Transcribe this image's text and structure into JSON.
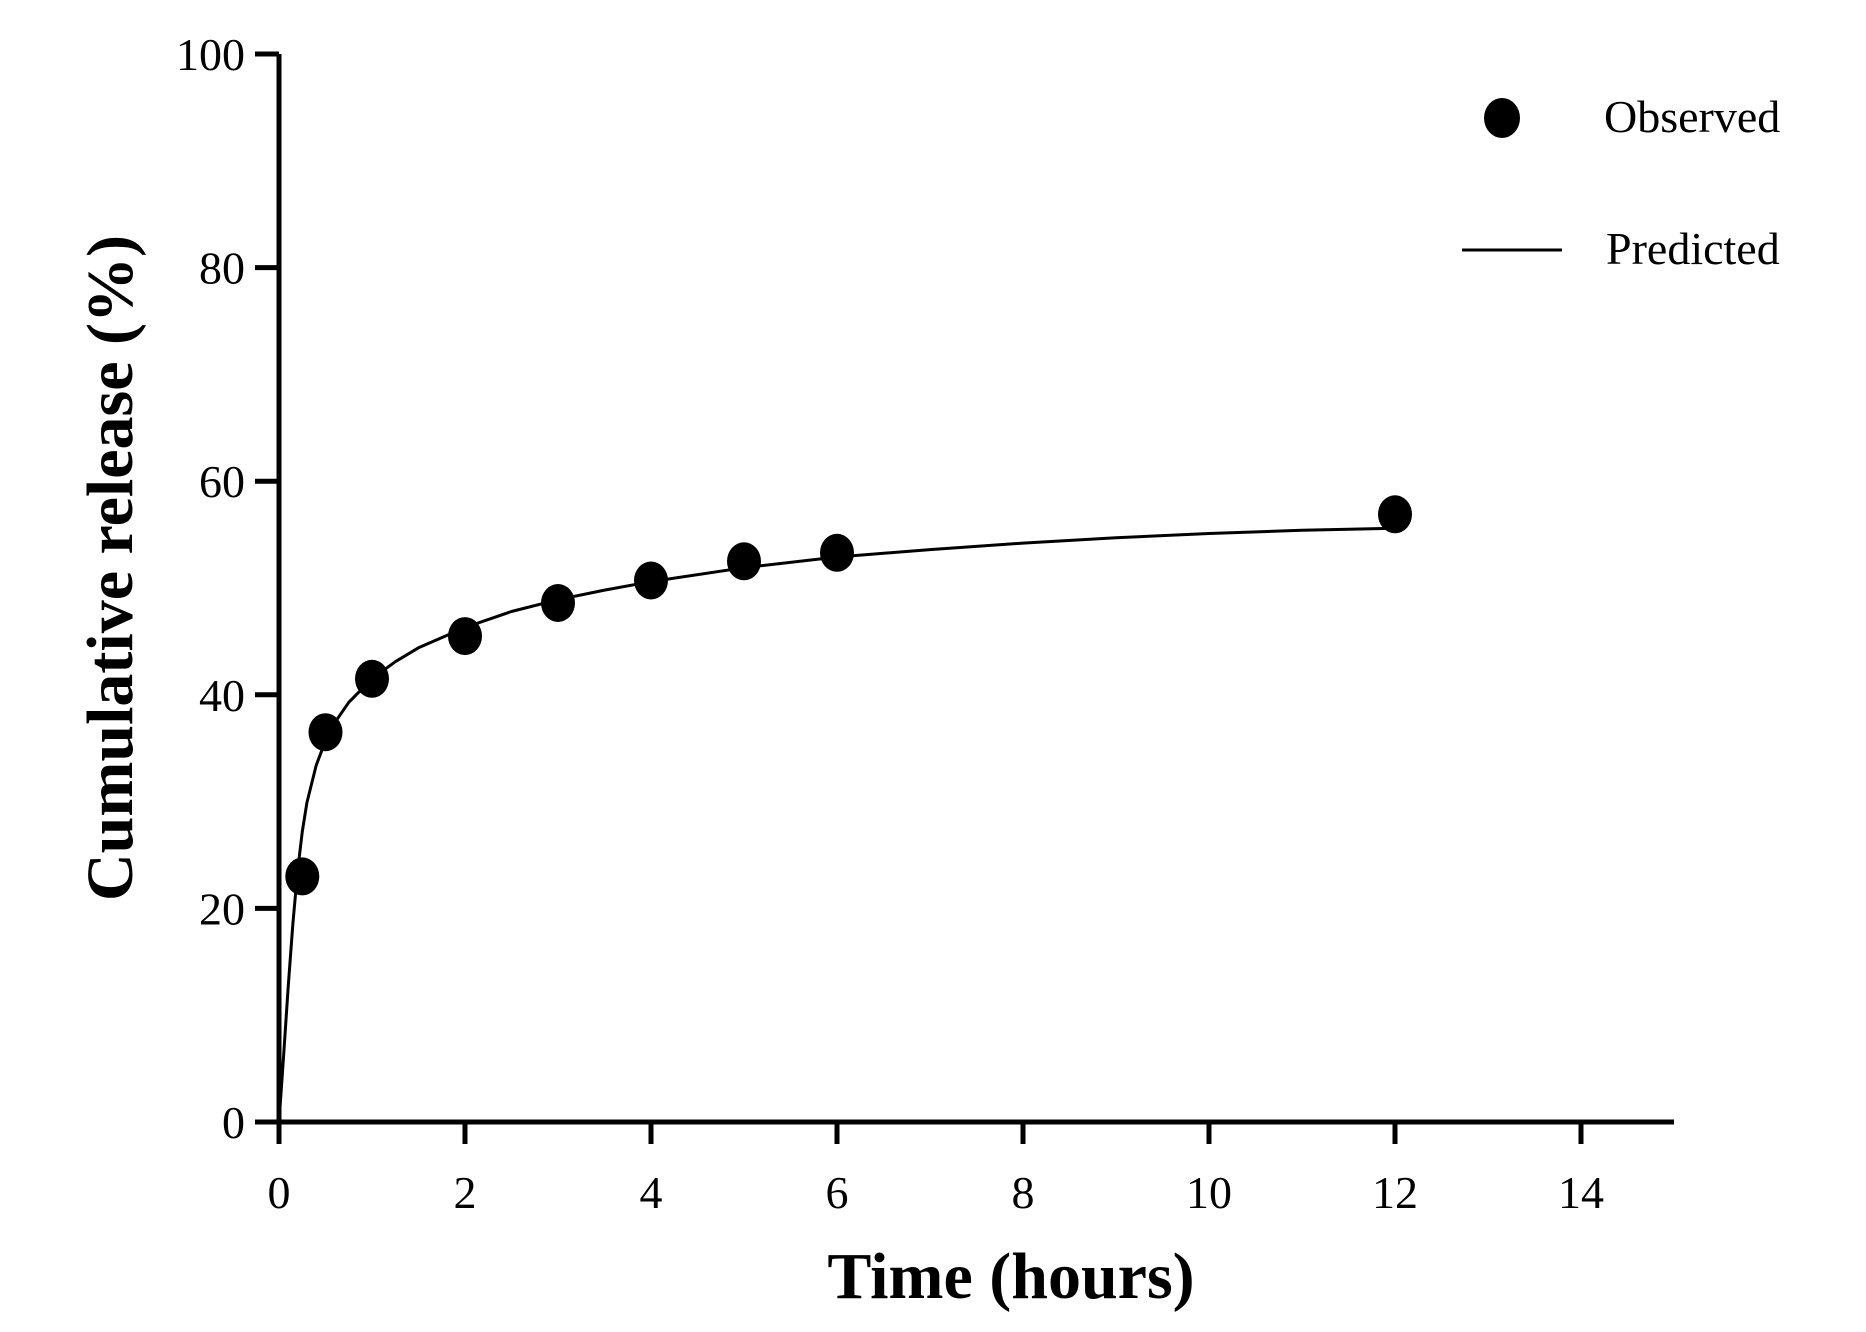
{
  "chart_data": {
    "type": "scatter",
    "xlabel": "Time (hours)",
    "ylabel": "Cumulative release (%)",
    "xlim": [
      0,
      15
    ],
    "ylim": [
      0,
      100
    ],
    "x_ticks": [
      0,
      2,
      4,
      6,
      8,
      10,
      12,
      14
    ],
    "x_tick_labels": [
      "0",
      "2",
      "4",
      "6",
      "8",
      "10",
      "12",
      "14"
    ],
    "y_ticks": [
      0,
      20,
      40,
      60,
      80,
      100
    ],
    "y_tick_labels": [
      "0",
      "20",
      "40",
      "60",
      "80",
      "100"
    ],
    "grid": false,
    "legend_position": "top-right",
    "colors": {
      "axis": "#000000",
      "marker": "#000000",
      "line": "#000000"
    },
    "series": [
      {
        "name": "Observed",
        "kind": "scatter",
        "x": [
          0.25,
          0.5,
          1,
          2,
          3,
          4,
          5,
          6,
          12
        ],
        "y": [
          23.0,
          36.5,
          41.5,
          45.5,
          48.6,
          50.7,
          52.5,
          53.3,
          56.9
        ]
      },
      {
        "name": "Predicted",
        "kind": "line",
        "x": [
          0,
          0.05,
          0.1,
          0.15,
          0.2,
          0.25,
          0.3,
          0.4,
          0.5,
          0.6,
          0.75,
          1,
          1.25,
          1.5,
          2,
          2.5,
          3,
          3.5,
          4,
          5,
          6,
          7,
          8,
          9,
          10,
          11,
          12
        ],
        "y": [
          0,
          6.2,
          12.8,
          18.6,
          23.5,
          27.2,
          29.9,
          33.4,
          35.7,
          37.4,
          39.3,
          41.5,
          43.1,
          44.4,
          46.3,
          47.8,
          48.9,
          49.8,
          50.6,
          51.9,
          52.9,
          53.6,
          54.2,
          54.7,
          55.1,
          55.4,
          55.6
        ]
      }
    ]
  }
}
